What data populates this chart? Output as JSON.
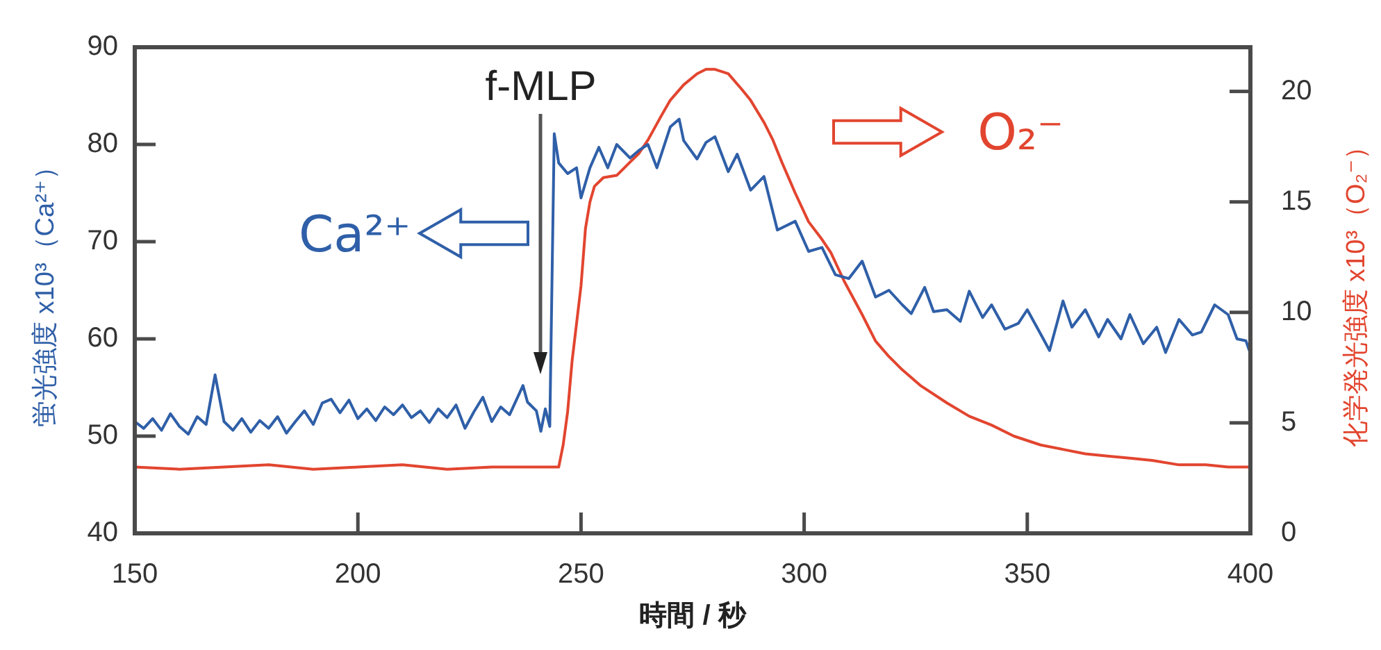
{
  "chart_data": {
    "type": "line",
    "xlabel": "時間 / 秒",
    "ylabel": "蛍光強度 x10³（Ca²⁺）",
    "y2label": "化学発光強度 x10³（O₂⁻）",
    "xlim": [
      150,
      400
    ],
    "xticks": [
      150,
      200,
      250,
      300,
      350,
      400
    ],
    "ylim": [
      40,
      90
    ],
    "yticks": [
      40,
      50,
      60,
      70,
      80,
      90
    ],
    "y2lim": [
      0,
      22
    ],
    "y2ticks": [
      0,
      5,
      10,
      15,
      20
    ],
    "marker": "none",
    "annotations": [
      "f-MLP"
    ],
    "series": [
      {
        "name": "Ca²⁺",
        "color": "#2f5fa8",
        "x": [
          150,
          152,
          154,
          156,
          158,
          160,
          162,
          164,
          166,
          168,
          170,
          172,
          174,
          176,
          178,
          180,
          182,
          184,
          186,
          188,
          190,
          192,
          194,
          196,
          198,
          200,
          202,
          204,
          206,
          208,
          210,
          212,
          214,
          216,
          218,
          220,
          222,
          224,
          226,
          228,
          230,
          232,
          234,
          237,
          238,
          240,
          241,
          242,
          243,
          244,
          245,
          247,
          249,
          250,
          252,
          254,
          256,
          258,
          261,
          263,
          265,
          267,
          270,
          272,
          273,
          276,
          278,
          280,
          283,
          285,
          288,
          291,
          294,
          298,
          301,
          304,
          307,
          310,
          313,
          316,
          319,
          322,
          324,
          327,
          329,
          332,
          335,
          337,
          340,
          342,
          345,
          348,
          350,
          353,
          355,
          358,
          360,
          363,
          366,
          368,
          371,
          373,
          376,
          379,
          381,
          384,
          387,
          389,
          392,
          395,
          397,
          399,
          400
        ],
        "values": [
          51.5,
          50.8,
          51.8,
          50.6,
          52.3,
          51.0,
          50.2,
          52.0,
          51.2,
          56.3,
          51.5,
          50.6,
          51.8,
          50.4,
          51.6,
          50.8,
          52.0,
          50.3,
          51.5,
          52.6,
          51.2,
          53.4,
          53.8,
          52.4,
          53.7,
          51.8,
          52.8,
          51.6,
          53.0,
          52.2,
          53.2,
          51.9,
          52.6,
          51.4,
          52.8,
          51.9,
          53.2,
          50.8,
          52.5,
          54.0,
          51.5,
          53.0,
          52.2,
          55.2,
          53.5,
          52.6,
          50.5,
          52.8,
          51.0,
          81.1,
          78.1,
          77.0,
          77.6,
          74.5,
          77.6,
          79.7,
          77.6,
          80.0,
          78.6,
          79.4,
          80.0,
          77.6,
          81.8,
          82.6,
          80.4,
          78.5,
          80.2,
          80.8,
          77.2,
          79.0,
          75.3,
          76.7,
          71.2,
          72.1,
          69.0,
          69.4,
          66.6,
          66.2,
          68.0,
          64.3,
          65.0,
          63.5,
          62.6,
          65.3,
          62.8,
          63.0,
          61.8,
          64.9,
          62.2,
          63.5,
          61.0,
          61.6,
          63.0,
          60.5,
          58.8,
          63.9,
          61.2,
          63.0,
          60.2,
          62.0,
          60.0,
          62.5,
          59.5,
          61.2,
          58.6,
          62.0,
          60.4,
          60.7,
          63.5,
          62.5,
          60.0,
          59.8,
          58.5
        ]
      },
      {
        "name": "O₂⁻",
        "color": "#e2452f",
        "axis": "y2",
        "x": [
          150,
          160,
          170,
          180,
          190,
          200,
          210,
          220,
          230,
          240,
          245,
          246,
          247,
          248,
          249,
          250,
          251,
          252,
          253,
          255,
          258,
          261,
          263,
          265,
          268,
          270,
          273,
          276,
          278,
          280,
          283,
          286,
          288,
          291,
          293,
          295,
          298,
          301,
          304,
          306,
          309,
          313,
          316,
          319,
          322,
          326,
          332,
          337,
          342,
          347,
          353,
          358,
          363,
          368,
          373,
          378,
          384,
          390,
          395,
          400
        ],
        "values": [
          3.0,
          2.9,
          3.0,
          3.1,
          2.9,
          3.0,
          3.1,
          2.9,
          3.0,
          3.0,
          3.0,
          4.0,
          5.5,
          7.8,
          9.5,
          11.2,
          13.8,
          15.0,
          15.7,
          16.1,
          16.2,
          16.8,
          17.2,
          17.8,
          18.9,
          19.6,
          20.3,
          20.8,
          21.0,
          21.0,
          20.8,
          20.1,
          19.6,
          18.6,
          17.8,
          16.8,
          15.4,
          14.1,
          13.3,
          12.7,
          11.4,
          9.9,
          8.7,
          8.0,
          7.4,
          6.7,
          5.9,
          5.3,
          4.9,
          4.4,
          4.0,
          3.8,
          3.6,
          3.5,
          3.4,
          3.3,
          3.1,
          3.1,
          3.0,
          3.0
        ]
      }
    ]
  }
}
